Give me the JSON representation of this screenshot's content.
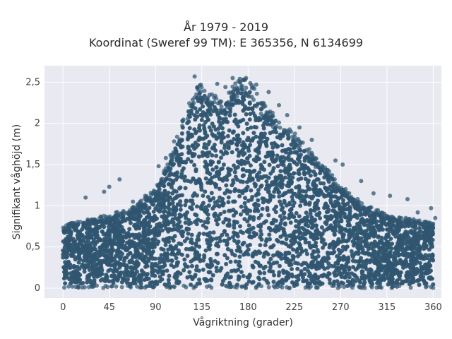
{
  "chart_data": {
    "type": "scatter",
    "title": "År 1979 - 2019",
    "subtitle": "Koordinat (Sweref 99 TM): E 365356, N 6134699",
    "xlabel": "Vågriktning (grader)",
    "ylabel": "Signifikant våghöjd (m)",
    "xlim": [
      -18,
      368
    ],
    "ylim": [
      -0.12,
      2.7
    ],
    "xticks": [
      0,
      45,
      90,
      135,
      180,
      225,
      270,
      315,
      360
    ],
    "xtick_labels": [
      "0",
      "45",
      "90",
      "135",
      "180",
      "225",
      "270",
      "315",
      "360"
    ],
    "yticks": [
      0,
      0.5,
      1,
      1.5,
      2,
      2.5
    ],
    "ytick_labels": [
      "0",
      "0,5",
      "1",
      "1,5",
      "2",
      "2,5"
    ],
    "grid": true,
    "marker_color": "#2f5570",
    "plot_bg": "#e8e9f1",
    "upper_envelope": {
      "x": [
        0,
        20,
        45,
        70,
        90,
        105,
        115,
        125,
        135,
        145,
        155,
        165,
        175,
        185,
        195,
        210,
        225,
        240,
        255,
        270,
        290,
        315,
        340,
        360
      ],
      "y": [
        0.72,
        0.8,
        0.85,
        0.95,
        1.15,
        1.55,
        1.9,
        2.25,
        2.4,
        2.25,
        2.2,
        2.35,
        2.45,
        2.35,
        2.15,
        1.95,
        1.8,
        1.6,
        1.4,
        1.2,
        1.0,
        0.85,
        0.8,
        0.75
      ]
    },
    "outliers": [
      {
        "x": 128,
        "y": 2.57
      },
      {
        "x": 165,
        "y": 2.55
      },
      {
        "x": 178,
        "y": 2.55
      },
      {
        "x": 172,
        "y": 2.54
      },
      {
        "x": 150,
        "y": 2.48
      },
      {
        "x": 188,
        "y": 2.47
      },
      {
        "x": 133,
        "y": 2.46
      },
      {
        "x": 158,
        "y": 2.44
      },
      {
        "x": 200,
        "y": 2.38
      },
      {
        "x": 210,
        "y": 2.22
      },
      {
        "x": 218,
        "y": 2.1
      },
      {
        "x": 230,
        "y": 1.95
      },
      {
        "x": 242,
        "y": 1.8
      },
      {
        "x": 265,
        "y": 1.55
      },
      {
        "x": 272,
        "y": 1.5
      },
      {
        "x": 290,
        "y": 1.3
      },
      {
        "x": 302,
        "y": 1.15
      },
      {
        "x": 318,
        "y": 1.12
      },
      {
        "x": 335,
        "y": 1.08
      },
      {
        "x": 345,
        "y": 0.92
      },
      {
        "x": 358,
        "y": 0.97
      },
      {
        "x": 55,
        "y": 1.32
      },
      {
        "x": 45,
        "y": 1.23
      },
      {
        "x": 40,
        "y": 1.17
      },
      {
        "x": 22,
        "y": 1.1
      },
      {
        "x": 68,
        "y": 1.05
      },
      {
        "x": 80,
        "y": 1.12
      },
      {
        "x": 93,
        "y": 1.48
      },
      {
        "x": 100,
        "y": 1.58
      },
      {
        "x": 108,
        "y": 1.78
      },
      {
        "x": 95,
        "y": 1.25
      },
      {
        "x": 362,
        "y": 0.85
      }
    ]
  }
}
